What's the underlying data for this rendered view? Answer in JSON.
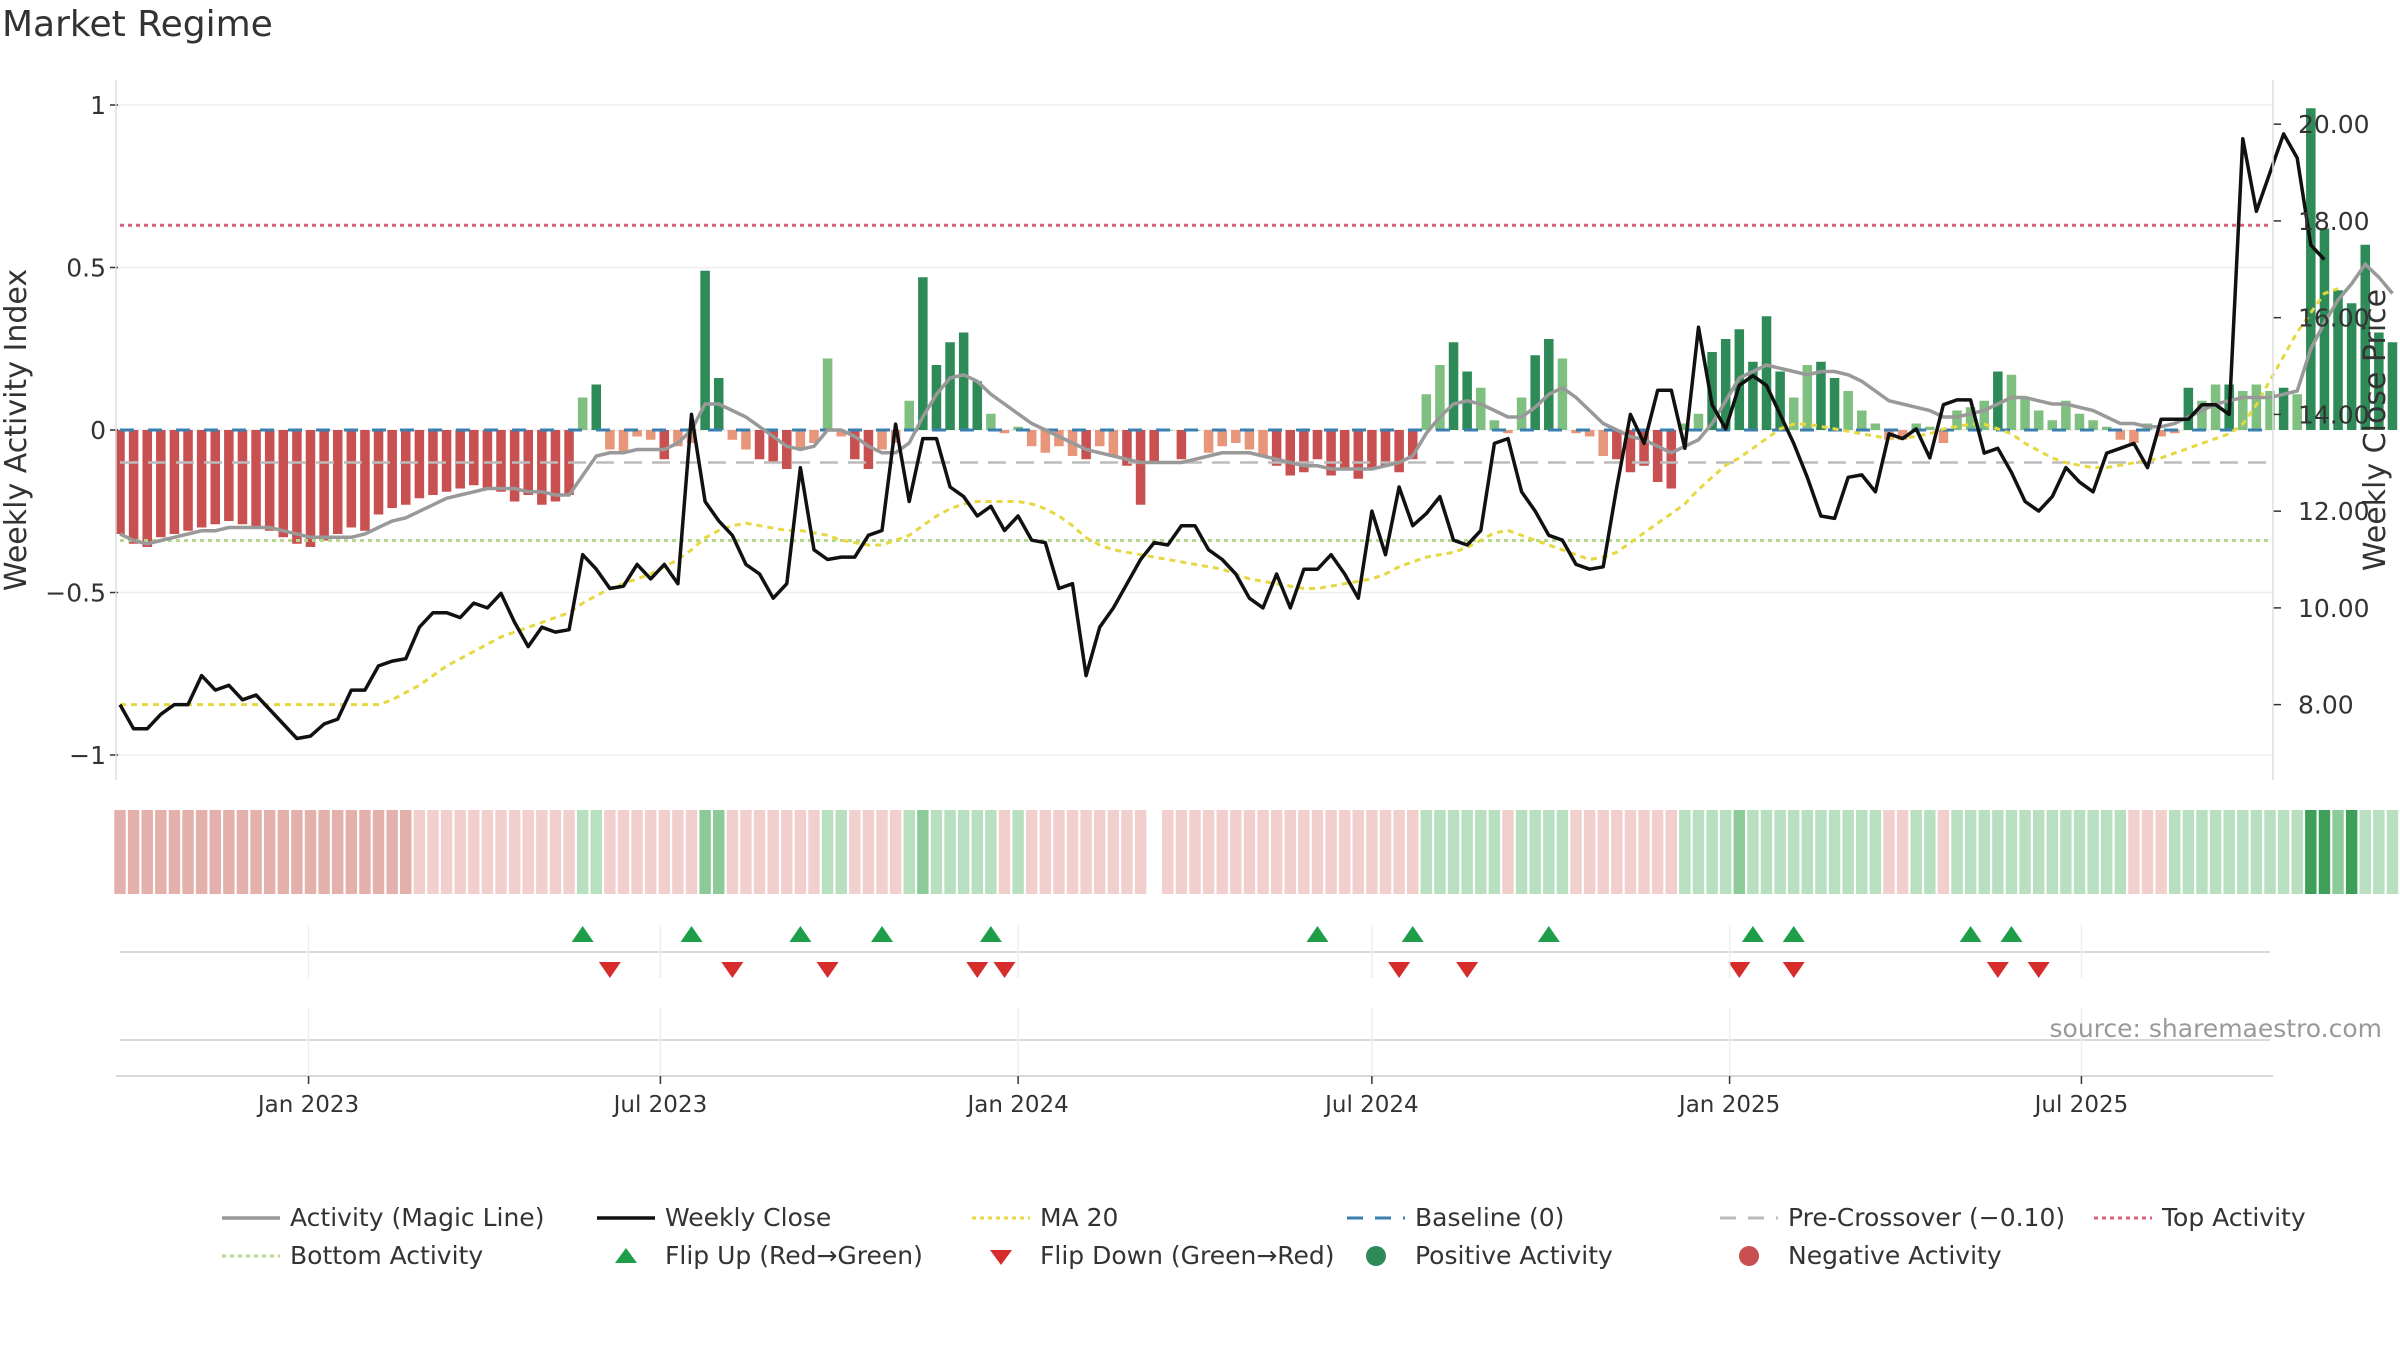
{
  "title": "Market Regime",
  "source": "source: sharemaestro.com",
  "colors": {
    "strong_green": "#2e8b57",
    "light_green": "#7fbf7f",
    "strong_red": "#c85050",
    "light_red": "#e8967a",
    "close": "#111111",
    "magic": "#999999",
    "ma20": "#e6d840",
    "top": "#d9607a",
    "bottom": "#b5d98a",
    "baseline": "#3a7fb0",
    "precross": "#bbbbbb",
    "flip_up": "#1f9e4a",
    "flip_down": "#d62c2c"
  },
  "chart_data": {
    "type": "bar",
    "title": "Market Regime",
    "ylabel": "Weekly Activity Index",
    "y2label": "Weekly Close Price",
    "ylim": [
      -1,
      1
    ],
    "y2lim": [
      7.0,
      20.5
    ],
    "yticks": [
      "1",
      "0.5",
      "0",
      "−0.5",
      "−1"
    ],
    "y2ticks": [
      "20.00",
      "18.00",
      "16.00",
      "14.00",
      "12.00",
      "10.00",
      "8.00"
    ],
    "x_start": "2022-09-26",
    "x_end": "2025-10-06",
    "week_step_days": 7,
    "xticks": [
      "Jan 2023",
      "Jul 2023",
      "Jan 2024",
      "Jul 2024",
      "Jan 2025",
      "Jul 2025"
    ],
    "xtick_dates": [
      "2023-01-01",
      "2023-07-01",
      "2024-01-01",
      "2024-07-01",
      "2025-01-01",
      "2025-07-01"
    ],
    "levels": {
      "top": 0.63,
      "bottom": -0.34,
      "baseline": 0,
      "precross": -0.1
    },
    "activity": [
      -0.32,
      -0.35,
      -0.36,
      -0.33,
      -0.32,
      -0.31,
      -0.3,
      -0.29,
      -0.28,
      -0.29,
      -0.3,
      -0.31,
      -0.33,
      -0.35,
      -0.36,
      -0.34,
      -0.32,
      -0.3,
      -0.31,
      -0.26,
      -0.24,
      -0.23,
      -0.21,
      -0.2,
      -0.19,
      -0.18,
      -0.17,
      -0.18,
      -0.19,
      -0.22,
      -0.2,
      -0.23,
      -0.22,
      -0.2,
      0.1,
      0.14,
      -0.06,
      -0.07,
      -0.02,
      -0.03,
      -0.09,
      -0.05,
      -0.04,
      0.49,
      0.16,
      -0.03,
      -0.06,
      -0.09,
      -0.1,
      -0.12,
      -0.06,
      -0.04,
      0.22,
      -0.02,
      -0.09,
      -0.12,
      -0.06,
      -0.04,
      0.09,
      0.47,
      0.2,
      0.27,
      0.3,
      0.15,
      0.05,
      -0.01,
      0.01,
      -0.05,
      -0.07,
      -0.05,
      -0.08,
      -0.09,
      -0.05,
      -0.08,
      -0.11,
      -0.23,
      -0.1,
      0,
      -0.09,
      0,
      -0.07,
      -0.05,
      -0.04,
      -0.06,
      -0.08,
      -0.11,
      -0.14,
      -0.13,
      -0.09,
      -0.14,
      -0.12,
      -0.15,
      -0.12,
      -0.11,
      -0.13,
      -0.09,
      0.11,
      0.2,
      0.27,
      0.18,
      0.13,
      0.03,
      -0.01,
      0.1,
      0.23,
      0.28,
      0.22,
      -0.01,
      -0.02,
      -0.08,
      -0.09,
      -0.13,
      -0.11,
      -0.16,
      -0.18,
      0.02,
      0.05,
      0.24,
      0.28,
      0.31,
      0.21,
      0.35,
      0.18,
      0.1,
      0.2,
      0.21,
      0.16,
      0.12,
      0.06,
      0.02,
      -0.03,
      -0.03,
      0.02,
      0.01,
      -0.04,
      0.06,
      0.07,
      0.09,
      0.18,
      0.17,
      0.1,
      0.06,
      0.03,
      0.09,
      0.05,
      0.03,
      0.01,
      -0.03,
      -0.04,
      0.02,
      -0.02,
      -0.01,
      0.13,
      0.09,
      0.14,
      0.14,
      0.12,
      0.14,
      0.12,
      0.13,
      0.11,
      0.99,
      0.62,
      0.43,
      0.39,
      0.57,
      0.3,
      0.27
    ],
    "magic_line": [
      -0.32,
      -0.34,
      -0.35,
      -0.34,
      -0.33,
      -0.32,
      -0.31,
      -0.31,
      -0.3,
      -0.3,
      -0.3,
      -0.3,
      -0.31,
      -0.32,
      -0.33,
      -0.33,
      -0.33,
      -0.33,
      -0.32,
      -0.3,
      -0.28,
      -0.27,
      -0.25,
      -0.23,
      -0.21,
      -0.2,
      -0.19,
      -0.18,
      -0.18,
      -0.18,
      -0.19,
      -0.19,
      -0.2,
      -0.2,
      -0.14,
      -0.08,
      -0.07,
      -0.07,
      -0.06,
      -0.06,
      -0.06,
      -0.04,
      0,
      0.08,
      0.08,
      0.06,
      0.04,
      0.01,
      -0.02,
      -0.05,
      -0.06,
      -0.05,
      0,
      0,
      -0.02,
      -0.05,
      -0.07,
      -0.07,
      -0.04,
      0.04,
      0.11,
      0.16,
      0.17,
      0.15,
      0.11,
      0.08,
      0.05,
      0.02,
      0,
      -0.02,
      -0.04,
      -0.06,
      -0.07,
      -0.08,
      -0.09,
      -0.1,
      -0.1,
      -0.1,
      -0.1,
      -0.09,
      -0.08,
      -0.07,
      -0.07,
      -0.07,
      -0.08,
      -0.09,
      -0.1,
      -0.11,
      -0.11,
      -0.12,
      -0.12,
      -0.12,
      -0.12,
      -0.11,
      -0.1,
      -0.08,
      -0.01,
      0.04,
      0.08,
      0.09,
      0.08,
      0.06,
      0.04,
      0.04,
      0.07,
      0.11,
      0.13,
      0.1,
      0.06,
      0.02,
      0,
      -0.02,
      -0.03,
      -0.05,
      -0.07,
      -0.05,
      -0.03,
      0.02,
      0.09,
      0.16,
      0.18,
      0.2,
      0.19,
      0.18,
      0.17,
      0.18,
      0.18,
      0.17,
      0.15,
      0.12,
      0.09,
      0.08,
      0.07,
      0.06,
      0.04,
      0.04,
      0.05,
      0.06,
      0.08,
      0.1,
      0.1,
      0.09,
      0.08,
      0.08,
      0.07,
      0.06,
      0.04,
      0.02,
      0.02,
      0.01,
      0.01,
      0.02,
      0.04,
      0.06,
      0.08,
      0.09,
      0.1,
      0.1,
      0.1,
      0.11,
      0.12,
      0.25,
      0.33,
      0.4,
      0.45,
      0.51,
      0.47,
      0.42
    ],
    "weekly_close": [
      8.0,
      7.5,
      7.5,
      7.8,
      8.0,
      8.0,
      8.6,
      8.3,
      8.4,
      8.1,
      8.2,
      7.9,
      7.6,
      7.3,
      7.35,
      7.6,
      7.7,
      8.3,
      8.3,
      8.8,
      8.9,
      8.95,
      9.6,
      9.9,
      9.9,
      9.8,
      10.1,
      10.0,
      10.3,
      9.7,
      9.2,
      9.6,
      9.5,
      9.55,
      11.1,
      10.8,
      10.4,
      10.45,
      10.9,
      10.6,
      10.9,
      10.5,
      14.0,
      12.2,
      11.8,
      11.5,
      10.9,
      10.7,
      10.2,
      10.5,
      12.9,
      11.2,
      11.0,
      11.05,
      11.05,
      11.5,
      11.6,
      13.8,
      12.2,
      13.5,
      13.5,
      12.5,
      12.3,
      11.9,
      12.1,
      11.6,
      11.9,
      11.4,
      11.35,
      10.4,
      10.5,
      8.6,
      9.6,
      10.0,
      10.5,
      11.0,
      11.35,
      11.3,
      11.7,
      11.7,
      11.2,
      11.0,
      10.7,
      10.2,
      10.0,
      10.7,
      10.0,
      10.8,
      10.8,
      11.1,
      10.7,
      10.2,
      12.0,
      11.1,
      12.5,
      11.7,
      11.95,
      12.3,
      11.4,
      11.3,
      11.6,
      13.4,
      13.5,
      12.4,
      12.0,
      11.5,
      11.4,
      10.9,
      10.8,
      10.85,
      12.5,
      14.0,
      13.4,
      14.5,
      14.5,
      13.3,
      15.8,
      14.2,
      13.7,
      14.6,
      14.8,
      14.6,
      14.0,
      13.4,
      12.7,
      11.9,
      11.85,
      12.7,
      12.75,
      12.4,
      13.6,
      13.5,
      13.7,
      13.1,
      14.2,
      14.3,
      14.3,
      13.2,
      13.3,
      12.8,
      12.2,
      12.0,
      12.3,
      12.9,
      12.6,
      12.4,
      13.2,
      13.3,
      13.4,
      12.9,
      13.9,
      13.9,
      13.9,
      14.2,
      14.2,
      14.0,
      19.7,
      18.2,
      19.0,
      19.8,
      19.3,
      17.5,
      17.2
    ],
    "ma20": [
      8.0,
      8.0,
      8.0,
      8.0,
      8.0,
      8.0,
      8.0,
      8.0,
      8.0,
      8.0,
      8.0,
      8.0,
      8.0,
      8.0,
      8.0,
      8.0,
      8.0,
      8.0,
      8.0,
      8.0,
      8.1,
      8.25,
      8.4,
      8.6,
      8.8,
      8.95,
      9.1,
      9.25,
      9.4,
      9.5,
      9.6,
      9.7,
      9.8,
      9.9,
      10.1,
      10.25,
      10.4,
      10.5,
      10.6,
      10.7,
      10.85,
      11.0,
      11.2,
      11.45,
      11.6,
      11.7,
      11.75,
      11.7,
      11.65,
      11.6,
      11.6,
      11.55,
      11.5,
      11.4,
      11.35,
      11.3,
      11.3,
      11.4,
      11.5,
      11.7,
      11.9,
      12.05,
      12.15,
      12.2,
      12.2,
      12.2,
      12.2,
      12.15,
      12.05,
      11.9,
      11.7,
      11.45,
      11.3,
      11.2,
      11.15,
      11.1,
      11.05,
      11.0,
      10.95,
      10.9,
      10.85,
      10.8,
      10.7,
      10.6,
      10.55,
      10.5,
      10.45,
      10.4,
      10.4,
      10.45,
      10.5,
      10.55,
      10.6,
      10.7,
      10.85,
      10.95,
      11.05,
      11.1,
      11.15,
      11.25,
      11.4,
      11.55,
      11.6,
      11.5,
      11.4,
      11.3,
      11.2,
      11.1,
      11.0,
      11.05,
      11.15,
      11.35,
      11.55,
      11.75,
      11.95,
      12.15,
      12.45,
      12.7,
      12.95,
      13.1,
      13.3,
      13.5,
      13.7,
      13.8,
      13.8,
      13.75,
      13.7,
      13.65,
      13.6,
      13.55,
      13.5,
      13.5,
      13.55,
      13.6,
      13.7,
      13.75,
      13.8,
      13.8,
      13.7,
      13.6,
      13.4,
      13.25,
      13.1,
      13.0,
      12.95,
      12.9,
      12.9,
      12.95,
      13.0,
      13.05,
      13.1,
      13.2,
      13.3,
      13.4,
      13.5,
      13.6,
      13.8,
      14.2,
      14.7,
      15.2,
      15.7,
      16.1,
      16.5,
      16.6
    ],
    "regime_strip": [
      -2,
      -2,
      -2,
      -2,
      -2,
      -2,
      -2,
      -2,
      -2,
      -2,
      -2,
      -2,
      -2,
      -2,
      -2,
      -2,
      -2,
      -2,
      -2,
      -2,
      -2,
      -2,
      -1,
      -1,
      -1,
      -1,
      -1,
      -1,
      -1,
      -1,
      -1,
      -1,
      -1,
      -1,
      1,
      1,
      -1,
      -1,
      -1,
      -1,
      -1,
      -1,
      -1,
      2,
      2,
      -1,
      -1,
      -1,
      -1,
      -1,
      -1,
      -1,
      1,
      1,
      -1,
      -1,
      -1,
      -1,
      1,
      2,
      1,
      1,
      1,
      1,
      1,
      -1,
      1,
      -1,
      -1,
      -1,
      -1,
      -1,
      -1,
      -1,
      -1,
      -1,
      0,
      -1,
      -1,
      -1,
      -1,
      -1,
      -1,
      -1,
      -1,
      -1,
      -1,
      -1,
      -1,
      -1,
      -1,
      -1,
      -1,
      -1,
      -1,
      -1,
      1,
      1,
      1,
      1,
      1,
      1,
      -1,
      1,
      1,
      1,
      1,
      -1,
      -1,
      -1,
      -1,
      -1,
      -1,
      -1,
      -1,
      1,
      1,
      1,
      1,
      2,
      1,
      1,
      1,
      1,
      1,
      1,
      1,
      1,
      1,
      1,
      -1,
      -1,
      1,
      1,
      -1,
      1,
      1,
      1,
      1,
      1,
      1,
      1,
      1,
      1,
      1,
      1,
      1,
      1,
      -1,
      -1,
      -1,
      1,
      1,
      1,
      1,
      1,
      1,
      1,
      1,
      1,
      1,
      3,
      3,
      2,
      3,
      1,
      1,
      1
    ],
    "flip_up_weeks": [
      34,
      42,
      50,
      56,
      64,
      88,
      95,
      105,
      120,
      123,
      136,
      139
    ],
    "flip_down_weeks": [
      36,
      45,
      52,
      63,
      65,
      94,
      99,
      119,
      123,
      138,
      141
    ],
    "x_gridlines": [
      "Jan 2023",
      "Jul 2023",
      "Jan 2024",
      "Jul 2024",
      "Jan 2025",
      "Jul 2025"
    ],
    "legend": [
      {
        "key": "magic",
        "label": "Activity (Magic Line)",
        "style": "solid"
      },
      {
        "key": "close",
        "label": "Weekly Close",
        "style": "solid"
      },
      {
        "key": "ma20",
        "label": "MA 20",
        "style": "dotted"
      },
      {
        "key": "baseline",
        "label": "Baseline (0)",
        "style": "dashed"
      },
      {
        "key": "precross",
        "label": "Pre-Crossover (−0.10)",
        "style": "dashed"
      },
      {
        "key": "top",
        "label": "Top Activity",
        "style": "dotted"
      },
      {
        "key": "bottom",
        "label": "Bottom Activity",
        "style": "dotted"
      },
      {
        "key": "flip_up",
        "label": "Flip Up (Red→Green)",
        "style": "tri-up"
      },
      {
        "key": "flip_down",
        "label": "Flip Down (Green→Red)",
        "style": "tri-down"
      },
      {
        "key": "strong_green",
        "label": "Positive Activity",
        "style": "dot"
      },
      {
        "key": "strong_red",
        "label": "Negative Activity",
        "style": "dot"
      }
    ]
  }
}
